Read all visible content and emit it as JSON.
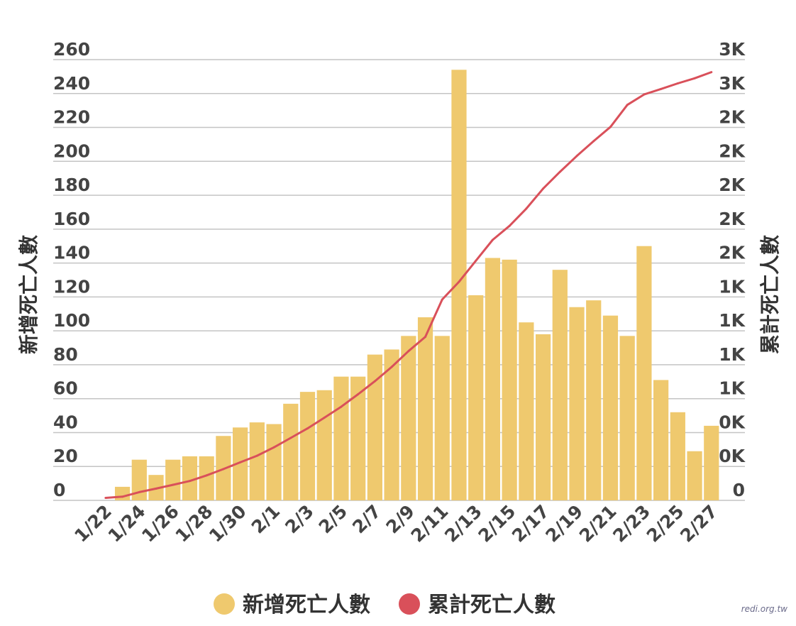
{
  "chart_data": {
    "type": "bar",
    "x": [
      "1/22",
      "1/23",
      "1/24",
      "1/25",
      "1/26",
      "1/27",
      "1/28",
      "1/29",
      "1/30",
      "1/31",
      "2/1",
      "2/2",
      "2/3",
      "2/4",
      "2/5",
      "2/6",
      "2/7",
      "2/8",
      "2/9",
      "2/10",
      "2/11",
      "2/12",
      "2/13",
      "2/14",
      "2/15",
      "2/16",
      "2/17",
      "2/18",
      "2/19",
      "2/20",
      "2/21",
      "2/22",
      "2/23",
      "2/24",
      "2/25",
      "2/26",
      "2/27"
    ],
    "x_tick_labels": [
      "1/22",
      "1/24",
      "1/26",
      "1/28",
      "1/30",
      "2/1",
      "2/3",
      "2/5",
      "2/7",
      "2/9",
      "2/11",
      "2/13",
      "2/15",
      "2/17",
      "2/19",
      "2/21",
      "2/23",
      "2/25",
      "2/27"
    ],
    "series": [
      {
        "name": "新增死亡人數",
        "type": "bar",
        "axis": "left",
        "color": "#EFC96E",
        "values": [
          0,
          8,
          24,
          15,
          24,
          26,
          26,
          38,
          43,
          46,
          45,
          57,
          64,
          65,
          73,
          73,
          86,
          89,
          97,
          108,
          97,
          254,
          121,
          143,
          142,
          105,
          98,
          136,
          114,
          118,
          109,
          97,
          150,
          71,
          52,
          29,
          44
        ]
      },
      {
        "name": "累計死亡人數",
        "type": "line",
        "axis": "right",
        "color": "#D9505A",
        "values": [
          17,
          25,
          56,
          80,
          106,
          132,
          170,
          213,
          259,
          304,
          361,
          425,
          490,
          563,
          637,
          722,
          811,
          908,
          1016,
          1113,
          1367,
          1488,
          1631,
          1773,
          1868,
          1986,
          2122,
          2236,
          2344,
          2445,
          2542,
          2692,
          2763,
          2800,
          2838,
          2873,
          2915
        ]
      }
    ],
    "y_left": {
      "label": "新增死亡人數",
      "min": 0,
      "max": 260,
      "ticks": [
        "0",
        "20",
        "40",
        "60",
        "80",
        "100",
        "120",
        "140",
        "160",
        "180",
        "200",
        "220",
        "240",
        "260"
      ]
    },
    "y_right": {
      "label": "累計死亡人數",
      "min": 0,
      "max": 3000,
      "ticks": [
        "0",
        "0K",
        "0K",
        "1K",
        "1K",
        "1K",
        "1K",
        "2K",
        "2K",
        "2K",
        "2K",
        "2K",
        "3K",
        "3K"
      ]
    },
    "legend": {
      "position": "bottom",
      "items": [
        "新增死亡人數",
        "累計死亡人數"
      ]
    },
    "grid": true,
    "watermark": "redi.org.tw"
  }
}
